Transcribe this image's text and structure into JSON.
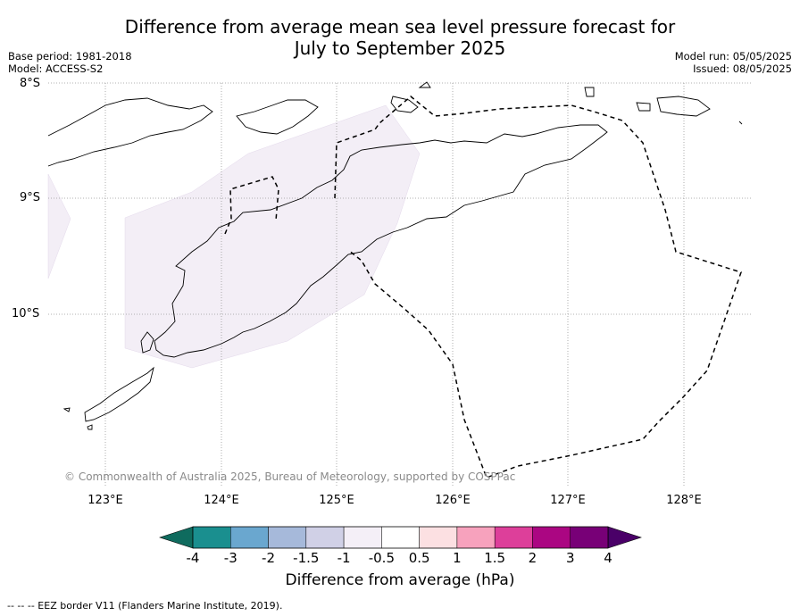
{
  "title": {
    "line1": "Difference from average mean sea level pressure forecast for",
    "line2": "July to September 2025"
  },
  "meta": {
    "base_period": "Base period: 1981-2018",
    "model": "Model: ACCESS-S2",
    "model_run": "Model run: 05/05/2025",
    "issued": "Issued: 08/05/2025"
  },
  "map": {
    "lat_labels": [
      "8°S",
      "9°S",
      "10°S"
    ],
    "lon_labels": [
      "123°E",
      "124°E",
      "125°E",
      "126°E",
      "127°E",
      "128°E"
    ],
    "copyright": "© Commonwealth of Australia 2025, Bureau of Meteorology, supported by COSPPac",
    "shaded_color": "#f3eef6",
    "gridline_style": "dotted"
  },
  "colorbar": {
    "ticks": [
      "-4",
      "-3",
      "-2",
      "-1.5",
      "-1",
      "-0.5",
      "0.5",
      "1",
      "1.5",
      "2",
      "3",
      "4"
    ],
    "colors": [
      "#1a8f8f",
      "#6aa7cf",
      "#a6b9da",
      "#d0d0e6",
      "#f4eff7",
      "#ffffff",
      "#fce0e2",
      "#f7a2bd",
      "#dd3f9a",
      "#ab0682",
      "#780077"
    ],
    "low_end_color": "#0f6b5e",
    "high_end_color": "#4a0068",
    "title": "Difference from average (hPa)"
  },
  "footnote": "--  --  -- EEZ border V11 (Flanders Marine Institute, 2019)."
}
